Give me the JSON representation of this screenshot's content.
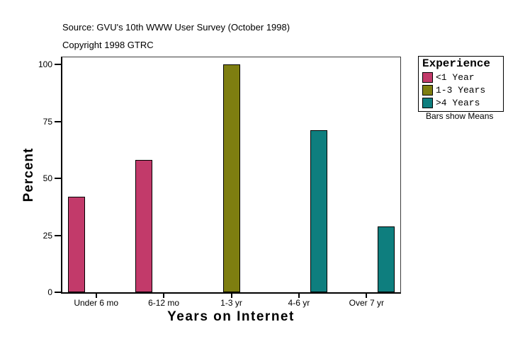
{
  "header": {
    "source": "Source: GVU's 10th WWW User Survey (October 1998)",
    "copyright": "Copyright 1998 GTRC"
  },
  "chart_data": {
    "type": "bar",
    "title": "",
    "xlabel": "Years on Internet",
    "ylabel": "Percent",
    "ylim": [
      0,
      100
    ],
    "yticks": [
      0,
      25,
      50,
      75,
      100
    ],
    "categories": [
      "Under 6 mo",
      "6-12 mo",
      "1-3 yr",
      "4-6 yr",
      "Over 7 yr"
    ],
    "series": [
      {
        "name": "<1 Year",
        "color": "#c23a6a",
        "values": [
          42,
          58,
          null,
          null,
          null
        ]
      },
      {
        "name": "1-3 Years",
        "color": "#7e7e10",
        "values": [
          null,
          null,
          100,
          null,
          null
        ]
      },
      {
        "name": ">4 Years",
        "color": "#0e7e7e",
        "values": [
          null,
          null,
          null,
          71,
          29
        ]
      }
    ],
    "legend_title": "Experience",
    "legend_position": "right",
    "note": "Bars show Means",
    "grid": false
  }
}
